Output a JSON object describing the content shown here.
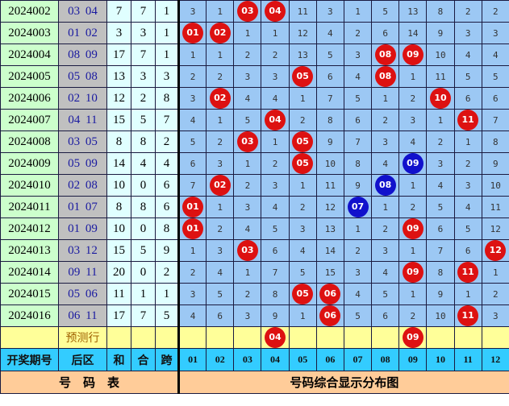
{
  "rows": [
    {
      "period": "2024002",
      "back": "03 04",
      "sum": "7",
      "he": "7",
      "kua": "1",
      "cells": [
        "3",
        "1",
        {
          "ball": "03",
          "color": "red"
        },
        {
          "ball": "04",
          "color": "red"
        },
        "11",
        "3",
        "1",
        "5",
        "13",
        "8",
        "2",
        "2"
      ]
    },
    {
      "period": "2024003",
      "back": "01 02",
      "sum": "3",
      "he": "3",
      "kua": "1",
      "cells": [
        {
          "ball": "01",
          "color": "red"
        },
        {
          "ball": "02",
          "color": "red"
        },
        "1",
        "1",
        "12",
        "4",
        "2",
        "6",
        "14",
        "9",
        "3",
        "3"
      ]
    },
    {
      "period": "2024004",
      "back": "08 09",
      "sum": "17",
      "he": "7",
      "kua": "1",
      "cells": [
        "1",
        "1",
        "2",
        "2",
        "13",
        "5",
        "3",
        {
          "ball": "08",
          "color": "red"
        },
        {
          "ball": "09",
          "color": "red"
        },
        "10",
        "4",
        "4"
      ]
    },
    {
      "period": "2024005",
      "back": "05 08",
      "sum": "13",
      "he": "3",
      "kua": "3",
      "cells": [
        "2",
        "2",
        "3",
        "3",
        {
          "ball": "05",
          "color": "red"
        },
        "6",
        "4",
        {
          "ball": "08",
          "color": "red"
        },
        "1",
        "11",
        "5",
        "5"
      ]
    },
    {
      "period": "2024006",
      "back": "02 10",
      "sum": "12",
      "he": "2",
      "kua": "8",
      "cells": [
        "3",
        {
          "ball": "02",
          "color": "red"
        },
        "4",
        "4",
        "1",
        "7",
        "5",
        "1",
        "2",
        {
          "ball": "10",
          "color": "red"
        },
        "6",
        "6"
      ]
    },
    {
      "period": "2024007",
      "back": "04 11",
      "sum": "15",
      "he": "5",
      "kua": "7",
      "cells": [
        "4",
        "1",
        "5",
        {
          "ball": "04",
          "color": "red"
        },
        "2",
        "8",
        "6",
        "2",
        "3",
        "1",
        {
          "ball": "11",
          "color": "red"
        },
        "7"
      ]
    },
    {
      "period": "2024008",
      "back": "03 05",
      "sum": "8",
      "he": "8",
      "kua": "2",
      "cells": [
        "5",
        "2",
        {
          "ball": "03",
          "color": "red"
        },
        "1",
        {
          "ball": "05",
          "color": "red"
        },
        "9",
        "7",
        "3",
        "4",
        "2",
        "1",
        "8"
      ]
    },
    {
      "period": "2024009",
      "back": "05 09",
      "sum": "14",
      "he": "4",
      "kua": "4",
      "cells": [
        "6",
        "3",
        "1",
        "2",
        {
          "ball": "05",
          "color": "red"
        },
        "10",
        "8",
        "4",
        {
          "ball": "09",
          "color": "blue"
        },
        "3",
        "2",
        "9"
      ]
    },
    {
      "period": "2024010",
      "back": "02 08",
      "sum": "10",
      "he": "0",
      "kua": "6",
      "cells": [
        "7",
        {
          "ball": "02",
          "color": "red"
        },
        "2",
        "3",
        "1",
        "11",
        "9",
        {
          "ball": "08",
          "color": "blue"
        },
        "1",
        "4",
        "3",
        "10"
      ]
    },
    {
      "period": "2024011",
      "back": "01 07",
      "sum": "8",
      "he": "8",
      "kua": "6",
      "cells": [
        {
          "ball": "01",
          "color": "red"
        },
        "1",
        "3",
        "4",
        "2",
        "12",
        {
          "ball": "07",
          "color": "blue"
        },
        "1",
        "2",
        "5",
        "4",
        "11"
      ]
    },
    {
      "period": "2024012",
      "back": "01 09",
      "sum": "10",
      "he": "0",
      "kua": "8",
      "cells": [
        {
          "ball": "01",
          "color": "red"
        },
        "2",
        "4",
        "5",
        "3",
        "13",
        "1",
        "2",
        {
          "ball": "09",
          "color": "red"
        },
        "6",
        "5",
        "12"
      ]
    },
    {
      "period": "2024013",
      "back": "03 12",
      "sum": "15",
      "he": "5",
      "kua": "9",
      "cells": [
        "1",
        "3",
        {
          "ball": "03",
          "color": "red"
        },
        "6",
        "4",
        "14",
        "2",
        "3",
        "1",
        "7",
        "6",
        {
          "ball": "12",
          "color": "red"
        }
      ]
    },
    {
      "period": "2024014",
      "back": "09 11",
      "sum": "20",
      "he": "0",
      "kua": "2",
      "cells": [
        "2",
        "4",
        "1",
        "7",
        "5",
        "15",
        "3",
        "4",
        {
          "ball": "09",
          "color": "red"
        },
        "8",
        {
          "ball": "11",
          "color": "red"
        },
        "1"
      ]
    },
    {
      "period": "2024015",
      "back": "05 06",
      "sum": "11",
      "he": "1",
      "kua": "1",
      "cells": [
        "3",
        "5",
        "2",
        "8",
        {
          "ball": "05",
          "color": "red"
        },
        {
          "ball": "06",
          "color": "red"
        },
        "4",
        "5",
        "1",
        "9",
        "1",
        "2"
      ]
    },
    {
      "period": "2024016",
      "back": "06 11",
      "sum": "17",
      "he": "7",
      "kua": "5",
      "cells": [
        "4",
        "6",
        "3",
        "9",
        "1",
        {
          "ball": "06",
          "color": "red"
        },
        "5",
        "6",
        "2",
        "10",
        {
          "ball": "11",
          "color": "red"
        },
        "3"
      ]
    }
  ],
  "prediction": {
    "label": "预测行",
    "cells": [
      "",
      "",
      "",
      {
        "ball": "04",
        "color": "red"
      },
      "",
      "",
      "",
      "",
      {
        "ball": "09",
        "color": "red"
      },
      "",
      "",
      ""
    ]
  },
  "header": {
    "period": "开奖期号",
    "back": "后区",
    "sum": "和",
    "he": "合",
    "kua": "跨",
    "numbers": [
      "01",
      "02",
      "03",
      "04",
      "05",
      "06",
      "07",
      "08",
      "09",
      "10",
      "11",
      "12"
    ]
  },
  "footer": {
    "left": "号　码　表",
    "right": "号码综合显示分布图"
  },
  "colors": {
    "red_ball": "#dd1111",
    "blue_ball": "#1111cc",
    "grid": "#9cc8f4",
    "header": "#33ccff",
    "footer": "#ffcc99",
    "prediction": "#ffff99"
  }
}
